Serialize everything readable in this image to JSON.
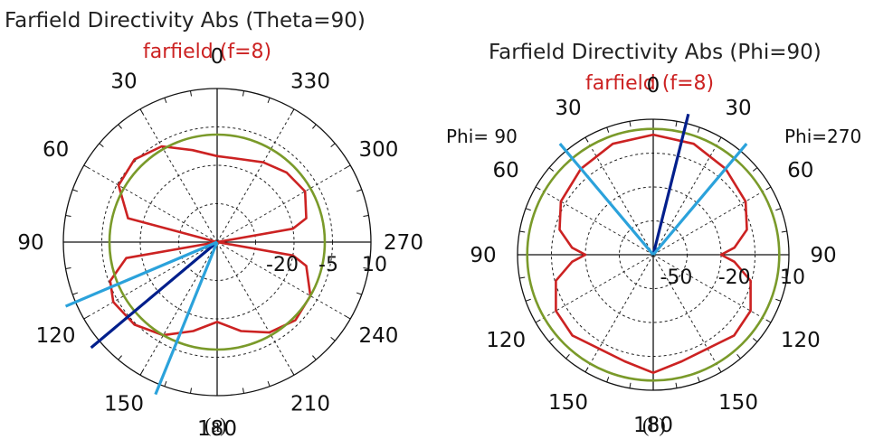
{
  "chart_data": [
    {
      "type": "polar",
      "title": "Farfield Directivity Abs (Theta=90)",
      "subtitle": "farfield (f=8)",
      "caption": "(a)",
      "angle_tick_labels": [
        "0",
        "330",
        "300",
        "270",
        "240",
        "210",
        "180",
        "150",
        "120",
        "90",
        "60",
        "30"
      ],
      "radial_tick_labels": [
        "-20",
        "-5",
        "10"
      ],
      "series": [
        {
          "color": "#cc2222",
          "angles_deg": [
            0,
            15,
            30,
            45,
            60,
            75,
            90,
            100,
            110,
            120,
            135,
            150,
            165,
            180,
            195,
            210,
            225,
            240,
            255,
            260,
            270,
            280,
            285,
            300,
            315,
            330,
            345,
            360
          ],
          "values": [
            -12,
            -9,
            -4,
            -2,
            -3,
            -10,
            -40,
            -10,
            -3,
            -1,
            -2,
            -5,
            -10,
            -14,
            -10,
            -6,
            -4,
            -5,
            -10,
            -15,
            -40,
            -15,
            -10,
            -7,
            -8,
            -10,
            -12,
            -12
          ]
        },
        {
          "color": "#7a9a2a",
          "constant_value": -5
        }
      ],
      "beam_lines": [
        {
          "angle_deg": 130,
          "color": "#001f8c"
        },
        {
          "angle_deg": 113,
          "color": "#2ba2db"
        },
        {
          "angle_deg": 158,
          "color": "#2ba2db"
        }
      ]
    },
    {
      "type": "polar",
      "title": "Farfield Directivity Abs (Phi=90)",
      "subtitle": "farfield (f=8)",
      "caption": "(b)",
      "side_label_left": "Phi= 90",
      "side_label_right": "Phi=270",
      "angle_tick_labels": [
        "0",
        "30",
        "60",
        "90",
        "120",
        "150",
        "180",
        "150",
        "120",
        "90",
        "60",
        "30"
      ],
      "radial_tick_labels": [
        "-50",
        "-20",
        "10"
      ],
      "series": [
        {
          "color": "#cc2222",
          "angles_deg": [
            0,
            20,
            40,
            60,
            75,
            85,
            90,
            95,
            105,
            120,
            135,
            150,
            165,
            180,
            195,
            210,
            225,
            240,
            255,
            265,
            270,
            275,
            285,
            300,
            320,
            340,
            360
          ],
          "values": [
            2,
            1,
            -2,
            -5,
            -10,
            -18,
            -25,
            -18,
            -8,
            -2,
            -1,
            -4,
            -3,
            1,
            -3,
            -4,
            -1,
            -2,
            -8,
            -18,
            -25,
            -18,
            -10,
            -5,
            -2,
            1,
            2
          ]
        },
        {
          "color": "#7a9a2a",
          "constant_value": 5
        }
      ],
      "beam_lines": [
        {
          "angle_deg": 14,
          "color": "#001f8c"
        },
        {
          "angle_deg": 40,
          "color": "#2ba2db"
        },
        {
          "angle_deg": 320,
          "color": "#2ba2db"
        }
      ]
    }
  ]
}
